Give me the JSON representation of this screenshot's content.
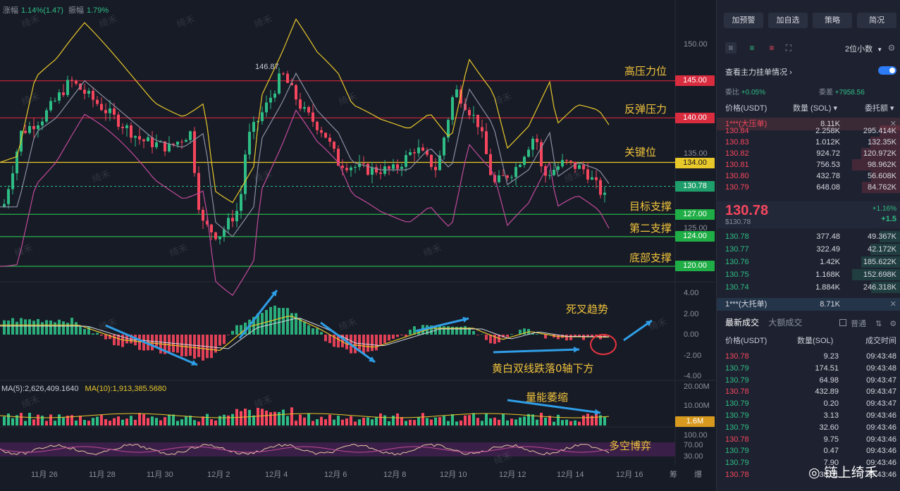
{
  "top_info": {
    "change_label": "涨幅",
    "change_value": "1.14%(1.47)",
    "amplitude_label": "振幅",
    "amplitude_value": "1.79%"
  },
  "price_axis": [
    "150.00",
    "145.00",
    "140.00",
    "135.00",
    "134.00",
    "130.78",
    "127.00",
    "125.00",
    "124.00",
    "120.00"
  ],
  "macd_axis": [
    "4.00",
    "2.00",
    "0.00",
    "-2.00",
    "-4.00"
  ],
  "volume_axis": [
    "20.00M",
    "10.00M",
    "1.6M"
  ],
  "rsi_axis": [
    "100.00",
    "70.00",
    "30.00"
  ],
  "dates": [
    "11月 26",
    "11月 28",
    "11月 30",
    "12月 2",
    "12月 4",
    "12月 6",
    "12月 8",
    "12月 10",
    "12月 12",
    "12月 14",
    "12月 16"
  ],
  "high_marker": "146.87",
  "levels": [
    {
      "label": "高压力位",
      "price": "145.00",
      "color": "#d0253b"
    },
    {
      "label": "反弹压力",
      "price": "140.00",
      "color": "#d0253b"
    },
    {
      "label": "关键位",
      "price": "134.00",
      "color": "#e8c82b"
    },
    {
      "label": "目标支撑",
      "price": "127.00",
      "color": "#26b34a"
    },
    {
      "label": "第二支撑",
      "price": "124.00",
      "color": "#26b34a"
    },
    {
      "label": "底部支撑",
      "price": "120.00",
      "color": "#26b34a"
    }
  ],
  "annotations": {
    "death_cross": "死叉趋势",
    "macd_note": "黄白双线跌落0轴下方",
    "volume_note": "量能萎缩",
    "rsi_note": "多空博弈"
  },
  "volume_legend": {
    "ma5_label": "MA(5):2,626,409.1640",
    "ma10_label": "MA(10):1,913,385.5680"
  },
  "watermark": "绮禾",
  "brand": "链上绮禾",
  "bottom_right_labels": [
    "筹",
    "爆"
  ],
  "right_panel": {
    "buttons": [
      "加预警",
      "加自选",
      "策略",
      "简况"
    ],
    "precision": "2位小数",
    "main_orders_label": "查看主力挂单情况",
    "ratio_label": "委比",
    "ratio_value": "+0.05%",
    "diff_label": "委差",
    "diff_value": "+7958.56",
    "headers": {
      "price": "价格(USDT)",
      "qty": "数量 (SOL)",
      "total": "委托额"
    },
    "big_ask_label": "1***(大压单)",
    "big_ask_value": "8.11K",
    "asks": [
      {
        "price": "130.84",
        "qty": "2.258K",
        "total": "295.414K"
      },
      {
        "price": "130.83",
        "qty": "1.012K",
        "total": "132.35K"
      },
      {
        "price": "130.82",
        "qty": "924.72",
        "total": "120.972K"
      },
      {
        "price": "130.81",
        "qty": "756.53",
        "total": "98.962K"
      },
      {
        "price": "130.80",
        "qty": "432.78",
        "total": "56.608K"
      },
      {
        "price": "130.79",
        "qty": "648.08",
        "total": "84.762K"
      }
    ],
    "last_price": "130.78",
    "last_price_usd": "$130.78",
    "last_change_pct": "+1.16%",
    "last_change": "+1.5",
    "bids": [
      {
        "price": "130.78",
        "qty": "377.48",
        "total": "49.367K"
      },
      {
        "price": "130.77",
        "qty": "322.49",
        "total": "42.172K"
      },
      {
        "price": "130.76",
        "qty": "1.42K",
        "total": "185.622K"
      },
      {
        "price": "130.75",
        "qty": "1.168K",
        "total": "152.698K"
      },
      {
        "price": "130.74",
        "qty": "1.884K",
        "total": "246.318K"
      }
    ],
    "big_bid_label": "1***(大托单)",
    "big_bid_value": "8.71K",
    "trades_tabs": [
      "最新成交",
      "大额成交"
    ],
    "normal_label": "普通",
    "trades_headers": {
      "price": "价格(USDT)",
      "qty": "数量(SOL)",
      "time": "成交时间"
    },
    "trades": [
      {
        "price": "130.78",
        "qty": "9.23",
        "time": "09:43:48",
        "side": "sell"
      },
      {
        "price": "130.79",
        "qty": "174.51",
        "time": "09:43:48",
        "side": "buy"
      },
      {
        "price": "130.79",
        "qty": "64.98",
        "time": "09:43:47",
        "side": "buy"
      },
      {
        "price": "130.78",
        "qty": "432.89",
        "time": "09:43:47",
        "side": "sell"
      },
      {
        "price": "130.79",
        "qty": "0.20",
        "time": "09:43:47",
        "side": "buy"
      },
      {
        "price": "130.79",
        "qty": "3.13",
        "time": "09:43:46",
        "side": "buy"
      },
      {
        "price": "130.79",
        "qty": "32.60",
        "time": "09:43:46",
        "side": "buy"
      },
      {
        "price": "130.78",
        "qty": "9.75",
        "time": "09:43:46",
        "side": "sell"
      },
      {
        "price": "130.79",
        "qty": "0.47",
        "time": "09:43:46",
        "side": "buy"
      },
      {
        "price": "130.79",
        "qty": "7.90",
        "time": "09:43:46",
        "side": "buy"
      },
      {
        "price": "130.78",
        "qty": "38.01",
        "time": "09:43:46",
        "side": "sell"
      }
    ]
  }
}
